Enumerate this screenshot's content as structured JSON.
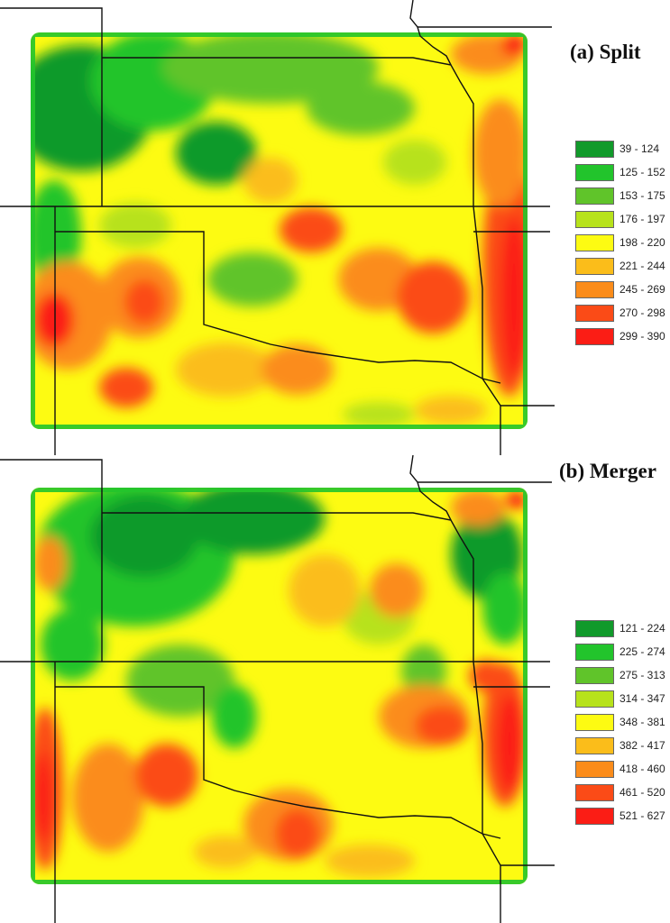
{
  "palette": [
    "#119a2b",
    "#22c42c",
    "#60c42a",
    "#b7e21b",
    "#fdfb12",
    "#fbbd1a",
    "#fb8c1a",
    "#fb4b17",
    "#fb1d15"
  ],
  "state_lines_color": "#111111",
  "panels": [
    {
      "id": "split",
      "title": "(a) Split",
      "legend": [
        {
          "label": "39 - 124"
        },
        {
          "label": "125 - 152"
        },
        {
          "label": "153 - 175"
        },
        {
          "label": "176 - 197"
        },
        {
          "label": "198 - 220"
        },
        {
          "label": "221 - 244"
        },
        {
          "label": "245 - 269"
        },
        {
          "label": "270 - 298"
        },
        {
          "label": "299 - 390"
        }
      ]
    },
    {
      "id": "merger",
      "title": "(b) Merger",
      "legend": [
        {
          "label": "121 - 224"
        },
        {
          "label": "225 - 274"
        },
        {
          "label": "275 - 313"
        },
        {
          "label": "314 - 347"
        },
        {
          "label": "348 - 381"
        },
        {
          "label": "382 - 417"
        },
        {
          "label": "418 - 460"
        },
        {
          "label": "461 - 520"
        },
        {
          "label": "521 - 627"
        }
      ]
    }
  ]
}
